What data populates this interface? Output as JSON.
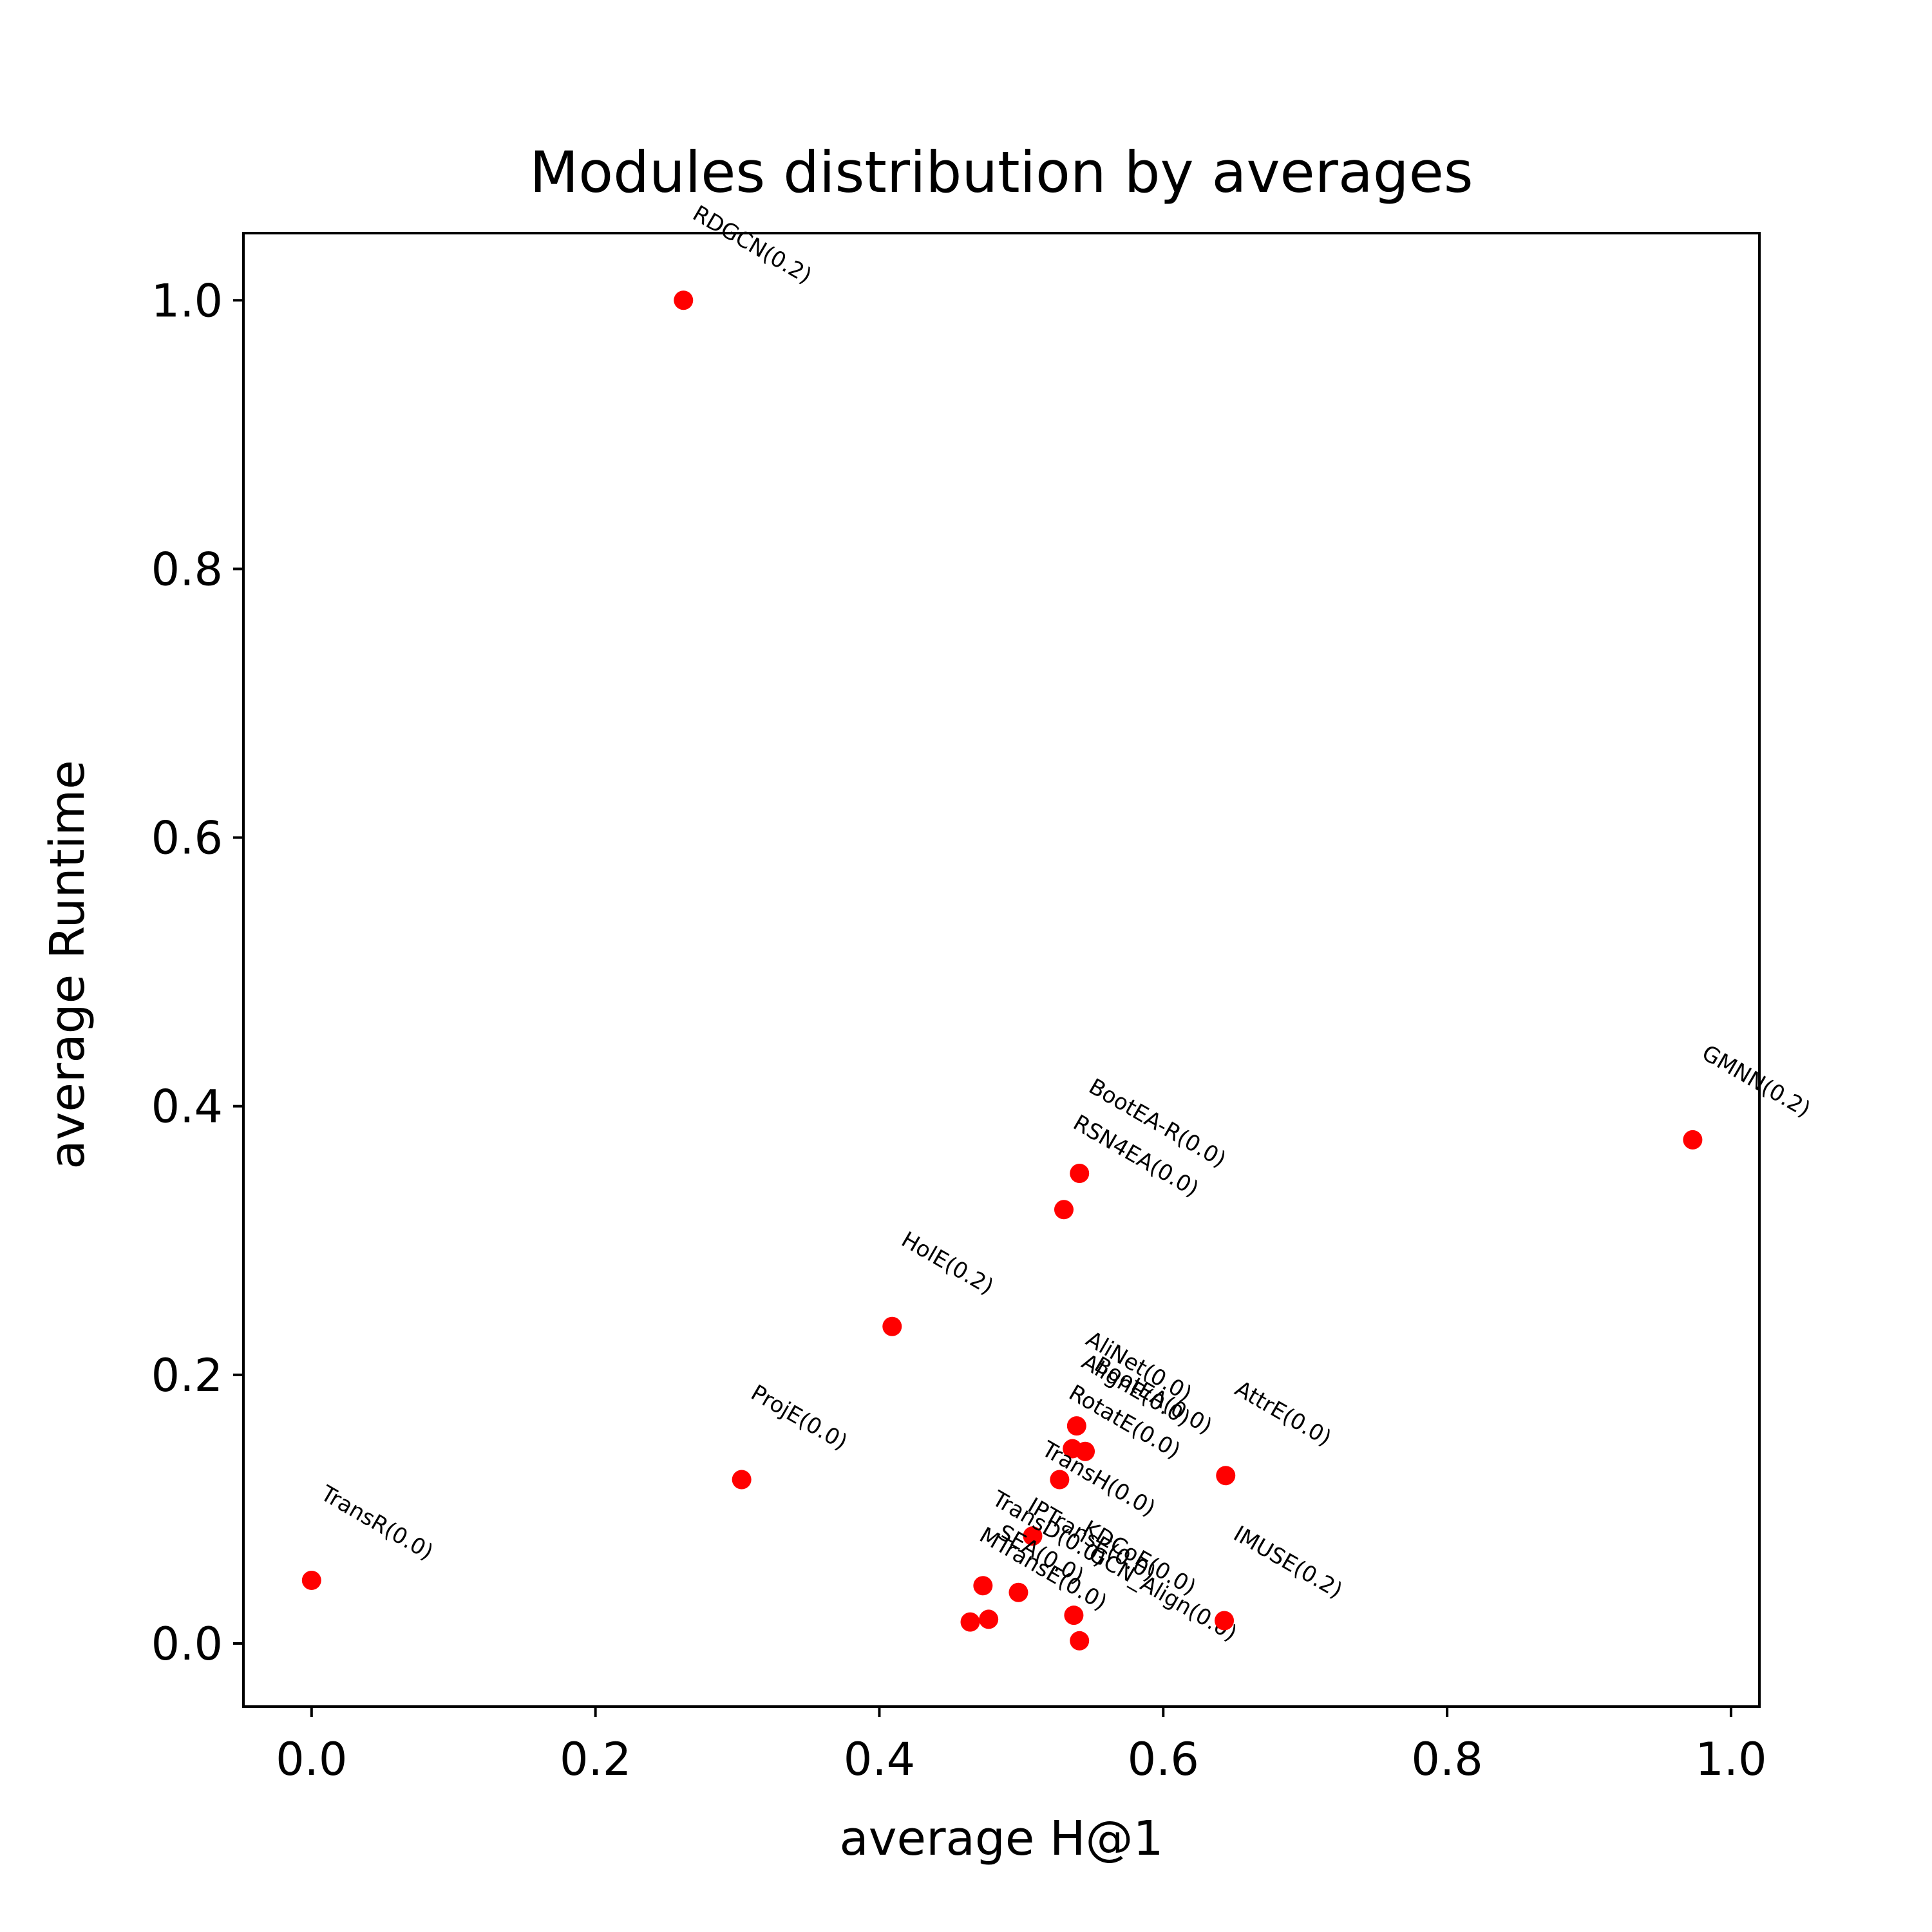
{
  "chart_data": {
    "type": "scatter",
    "title": "Modules distribution by averages",
    "xlabel": "average H@1",
    "ylabel": "average Runtime",
    "xlim": [
      -0.048,
      1.02
    ],
    "ylim": [
      -0.047,
      1.05
    ],
    "xticks": [
      "0.0",
      "0.2",
      "0.4",
      "0.6",
      "0.8",
      "1.0"
    ],
    "yticks": [
      "0.0",
      "0.2",
      "0.4",
      "0.6",
      "0.8",
      "1.0"
    ],
    "xtick_values": [
      0.0,
      0.2,
      0.4,
      0.6,
      0.8,
      1.0
    ],
    "ytick_values": [
      0.0,
      0.2,
      0.4,
      0.6,
      0.8,
      1.0
    ],
    "grid": false,
    "legend": "none",
    "marker_color": "#ff0000",
    "points": [
      {
        "label": "RDGCN(0.2)",
        "x": 0.262,
        "y": 1.0
      },
      {
        "label": "GMNN(0.2)",
        "x": 0.973,
        "y": 0.375
      },
      {
        "label": "BootEA-R(0.0)",
        "x": 0.541,
        "y": 0.35
      },
      {
        "label": "RSN4EA(0.0)",
        "x": 0.53,
        "y": 0.323
      },
      {
        "label": "HolE(0.2)",
        "x": 0.409,
        "y": 0.236
      },
      {
        "label": "AliNet(0.0)",
        "x": 0.539,
        "y": 0.162
      },
      {
        "label": "BootEA(0.0)",
        "x": 0.545,
        "y": 0.143
      },
      {
        "label": "AlignE(0.0)",
        "x": 0.536,
        "y": 0.145
      },
      {
        "label": "AttrE(0.0)",
        "x": 0.644,
        "y": 0.125
      },
      {
        "label": "RotatE(0.0)",
        "x": 0.527,
        "y": 0.122
      },
      {
        "label": "ProjE(0.0)",
        "x": 0.303,
        "y": 0.122
      },
      {
        "label": "TransH(0.0)",
        "x": 0.508,
        "y": 0.08
      },
      {
        "label": "TransR(0.0)",
        "x": 0.0,
        "y": 0.047
      },
      {
        "label": "TransD(0.0)",
        "x": 0.473,
        "y": 0.043
      },
      {
        "label": "IPTransE(0.0)",
        "x": 0.498,
        "y": 0.038
      },
      {
        "label": "SEA(0.0)",
        "x": 0.477,
        "y": 0.018
      },
      {
        "label": "MTransE(0.0)",
        "x": 0.464,
        "y": 0.016
      },
      {
        "label": "KDCoE(0.0)",
        "x": 0.537,
        "y": 0.021
      },
      {
        "label": "GCN_Align(0.0)",
        "x": 0.541,
        "y": 0.002
      },
      {
        "label": "IMUSE(0.2)",
        "x": 0.643,
        "y": 0.017
      }
    ]
  }
}
